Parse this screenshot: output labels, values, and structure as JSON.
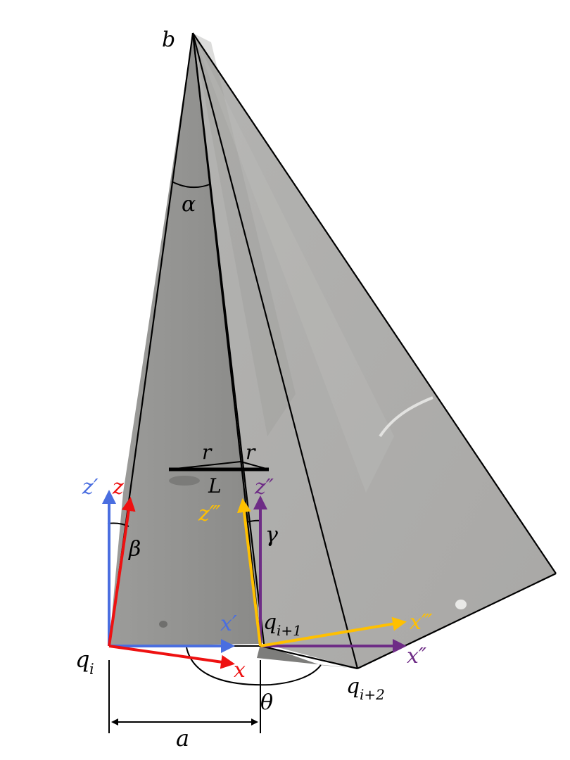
{
  "labels": {
    "apex": "b",
    "angle_alpha": "α",
    "angle_beta": "β",
    "angle_gamma": "γ",
    "angle_theta": "θ",
    "fold_width": "a",
    "radius_left": "r",
    "radius_right": "r",
    "segment_length": "L",
    "node_qi_base": "q",
    "node_qi_sub": "i",
    "node_qi1_base": "q",
    "node_qi1_sub": "i+1",
    "node_qi2_base": "q",
    "node_qi2_sub": "i+2",
    "axis_z_prime": "z′",
    "axis_z": "z",
    "axis_x_prime": "x′",
    "axis_x": "x",
    "axis_z_dprime": "z″",
    "axis_z_tprime": "z‴",
    "axis_x_tprime": "x‴",
    "axis_x_dprime": "x″"
  },
  "colors": {
    "blue": "#4a6ee0",
    "red": "#ee1111",
    "purple": "#6e2c86",
    "yellow": "#ffc000",
    "outline": "#000000",
    "panel_light": "#b8b8b6",
    "panel_mid": "#a3a3a1",
    "panel_dark": "#8c8c8a"
  }
}
